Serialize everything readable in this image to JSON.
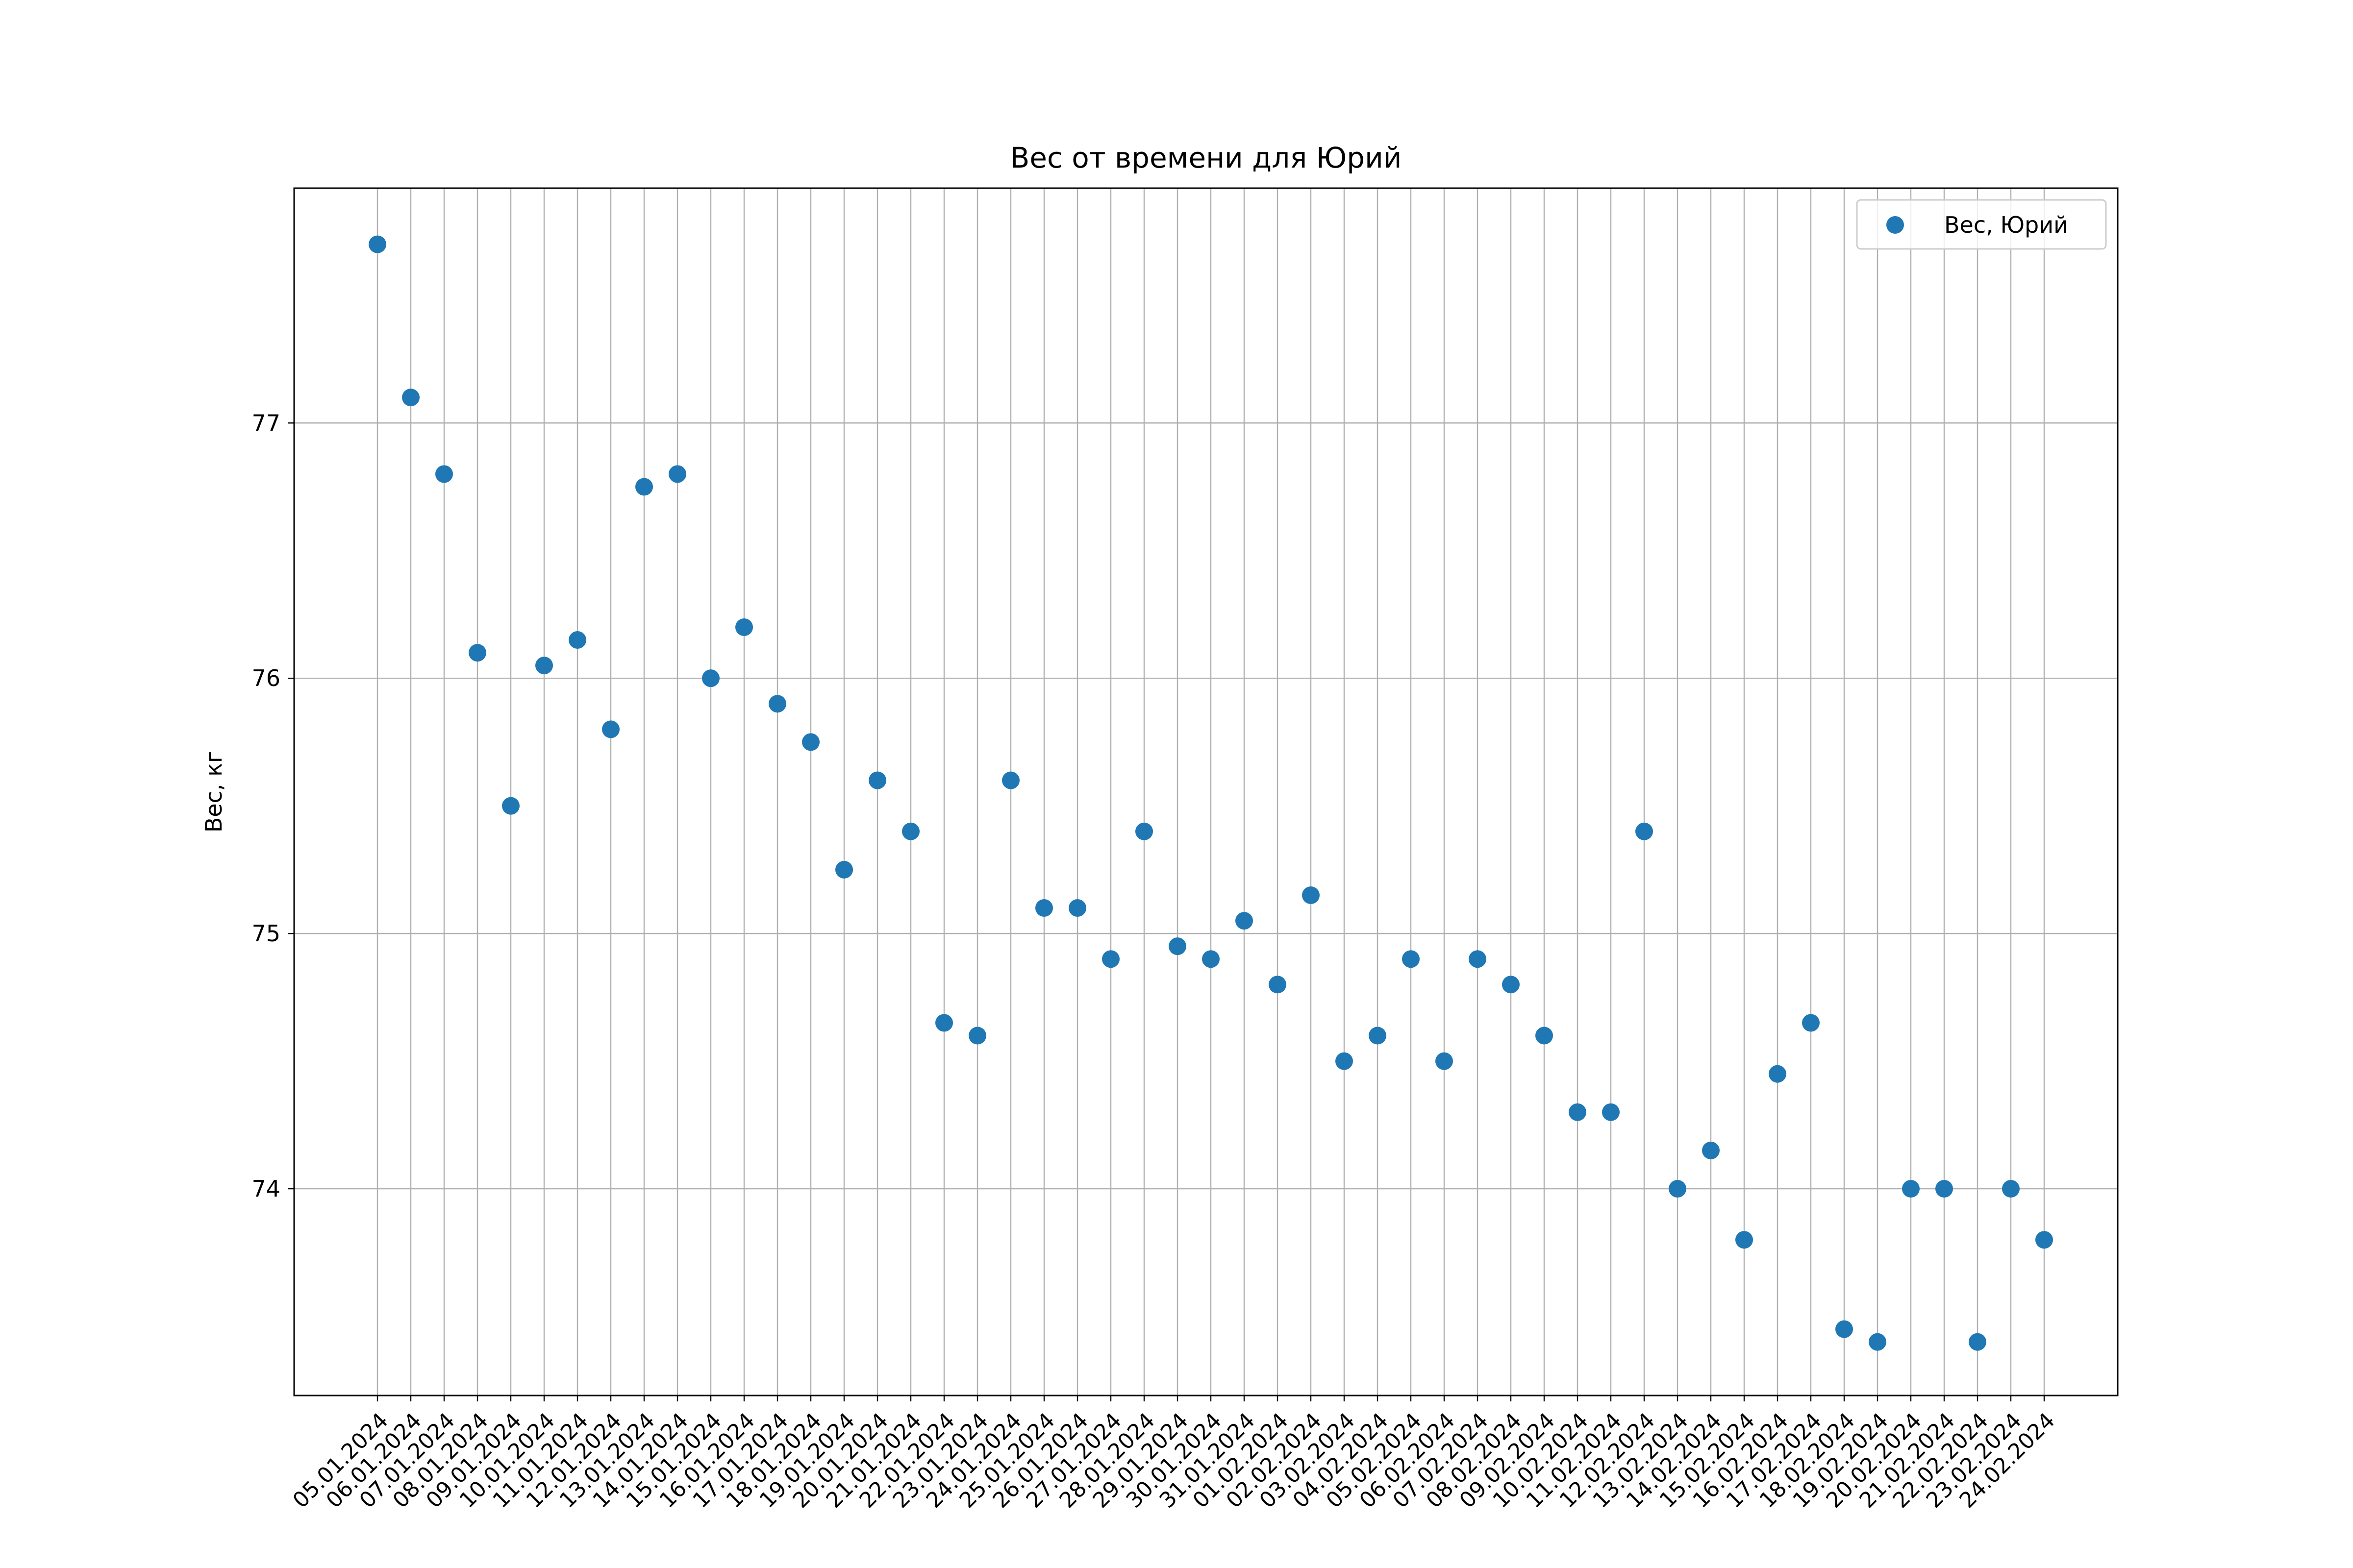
{
  "chart_data": {
    "type": "scatter",
    "title": "Вес от времени для Юрий",
    "xlabel": "",
    "ylabel": "Вес, кг",
    "x": [
      "05.01.2024",
      "06.01.2024",
      "07.01.2024",
      "08.01.2024",
      "09.01.2024",
      "10.01.2024",
      "11.01.2024",
      "12.01.2024",
      "13.01.2024",
      "14.01.2024",
      "15.01.2024",
      "16.01.2024",
      "17.01.2024",
      "18.01.2024",
      "19.01.2024",
      "20.01.2024",
      "21.01.2024",
      "22.01.2024",
      "23.01.2024",
      "24.01.2024",
      "25.01.2024",
      "26.01.2024",
      "27.01.2024",
      "28.01.2024",
      "29.01.2024",
      "30.01.2024",
      "31.01.2024",
      "01.02.2024",
      "02.02.2024",
      "03.02.2024",
      "04.02.2024",
      "05.02.2024",
      "06.02.2024",
      "07.02.2024",
      "08.02.2024",
      "09.02.2024",
      "10.02.2024",
      "11.02.2024",
      "12.02.2024",
      "13.02.2024",
      "14.02.2024",
      "15.02.2024",
      "16.02.2024",
      "17.02.2024",
      "18.02.2024",
      "19.02.2024",
      "20.02.2024",
      "21.02.2024",
      "22.02.2024",
      "23.02.2024",
      "24.02.2024"
    ],
    "series": [
      {
        "name": "Вес, Юрий",
        "color": "#1f77b4",
        "values": [
          77.7,
          77.1,
          76.8,
          76.1,
          75.5,
          76.05,
          76.15,
          75.8,
          76.75,
          76.8,
          76.0,
          76.2,
          75.9,
          75.75,
          75.25,
          75.6,
          75.4,
          74.65,
          74.6,
          75.6,
          75.1,
          75.1,
          74.9,
          75.4,
          74.95,
          74.9,
          75.05,
          74.8,
          75.15,
          74.5,
          74.6,
          74.9,
          74.5,
          74.9,
          74.8,
          74.6,
          74.3,
          74.3,
          75.4,
          74.0,
          74.15,
          73.8,
          74.45,
          74.65,
          73.45,
          73.4,
          74.0,
          74.0,
          73.4,
          74.0,
          73.8
        ]
      }
    ],
    "yticks": [
      74,
      75,
      76,
      77
    ],
    "ylim": [
      73.19,
      77.92
    ],
    "grid": true,
    "legend_position": "upper right",
    "x_tick_rotation": 45
  }
}
